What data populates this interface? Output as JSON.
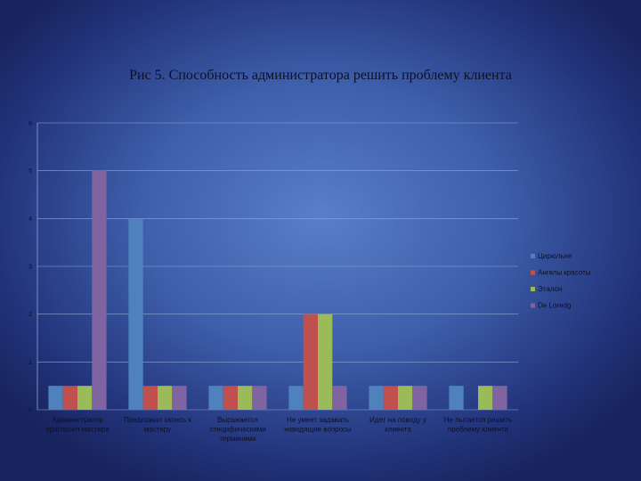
{
  "chart_data": {
    "type": "bar",
    "title": "Рис 5. Способность администратора решить проблему клиента",
    "categories": [
      "Администратор пригласил мастера",
      "Предложил запись к мастеру",
      "Выражается специфическими терминами",
      "Не умеет задавать наводящие вопросы",
      "Идет на поводу у клиента",
      "Не пытается решить проблему клиента"
    ],
    "series": [
      {
        "name": "Цирюльня",
        "color": "#4f81bd",
        "values": [
          0.5,
          4,
          0.5,
          0.5,
          0.5,
          0.5
        ]
      },
      {
        "name": "Ангелы красоты",
        "color": "#c0504d",
        "values": [
          0.5,
          0.5,
          0.5,
          2,
          0.5,
          0
        ]
      },
      {
        "name": "Эталон",
        "color": "#9bbb59",
        "values": [
          0.5,
          0.5,
          0.5,
          2,
          0.5,
          0.5
        ]
      },
      {
        "name": "De Loredg",
        "color": "#8064a2",
        "values": [
          5,
          0.5,
          0.5,
          0.5,
          0.5,
          0.5
        ]
      }
    ],
    "ylim": [
      0,
      6
    ],
    "yticks": [
      "0",
      "1",
      "2",
      "3",
      "4",
      "5",
      "6"
    ],
    "grid": true,
    "legend": "right"
  }
}
